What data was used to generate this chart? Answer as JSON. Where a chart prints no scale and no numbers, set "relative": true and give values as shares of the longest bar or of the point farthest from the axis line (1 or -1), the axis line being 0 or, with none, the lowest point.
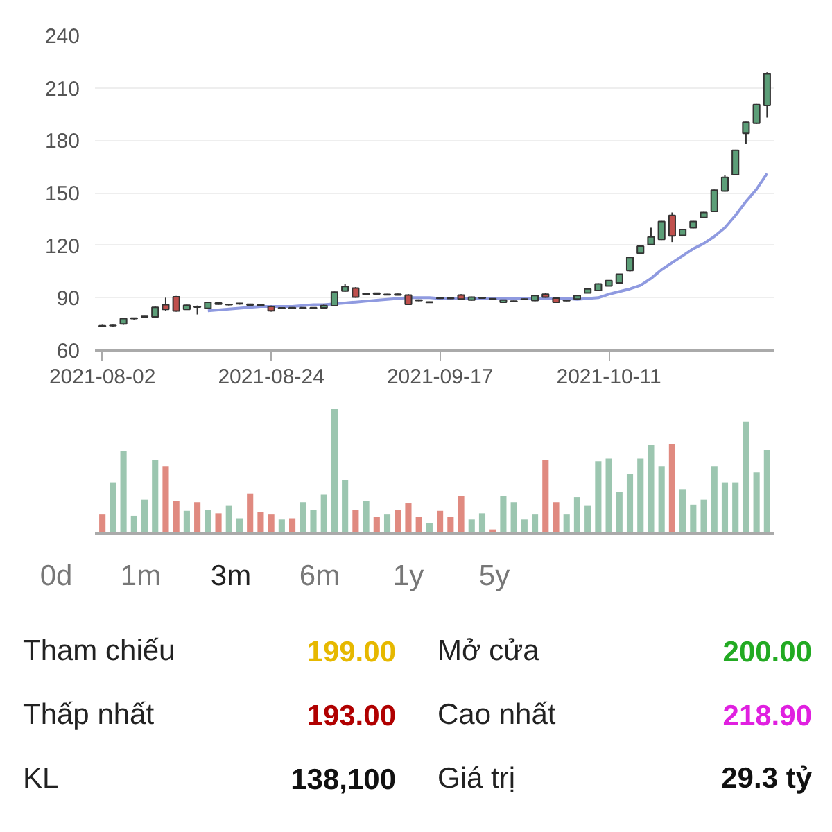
{
  "chart_data": [
    {
      "type": "candlestick",
      "categories": [
        "2021-08-02",
        null,
        null,
        null,
        null,
        null,
        null,
        null,
        null,
        null,
        null,
        null,
        null,
        null,
        null,
        null,
        "2021-08-24",
        null,
        null,
        null,
        null,
        null,
        null,
        null,
        null,
        null,
        null,
        null,
        null,
        null,
        null,
        null,
        "2021-09-17",
        null,
        null,
        null,
        null,
        null,
        null,
        null,
        null,
        null,
        null,
        null,
        null,
        null,
        null,
        null,
        "2021-10-11",
        null,
        null,
        null,
        null,
        null,
        null,
        null,
        null,
        null,
        null,
        null,
        null,
        null,
        null,
        null
      ],
      "ohlc": [
        [
          74,
          74.5,
          73.5,
          73.8
        ],
        [
          74,
          74.5,
          73.5,
          74.2
        ],
        [
          75,
          78.5,
          74.5,
          78
        ],
        [
          78,
          78.5,
          77.5,
          78.3
        ],
        [
          79,
          79.5,
          78.5,
          79.3
        ],
        [
          79,
          85,
          78.5,
          84.5
        ],
        [
          86,
          90,
          82.5,
          83.3
        ],
        [
          90.5,
          91,
          82,
          82.4
        ],
        [
          83.3,
          86,
          83,
          85.7
        ],
        [
          85,
          85.5,
          80.4,
          84.6
        ],
        [
          83.9,
          87.5,
          83.5,
          87.4
        ],
        [
          87,
          87.5,
          86,
          86.3
        ],
        [
          86,
          86.5,
          85.5,
          86.2
        ],
        [
          86.5,
          87,
          86,
          86.8
        ],
        [
          86.3,
          86.6,
          85.5,
          85.8
        ],
        [
          86,
          86.3,
          85.2,
          85.6
        ],
        [
          85,
          85.5,
          82,
          82.5
        ],
        [
          84,
          84.5,
          83.5,
          84.2
        ],
        [
          84.3,
          84.6,
          83.6,
          83.9
        ],
        [
          84,
          84.5,
          83.5,
          84.3
        ],
        [
          84,
          84.5,
          83.6,
          84.3
        ],
        [
          84.2,
          86,
          84,
          85.5
        ],
        [
          85.4,
          93.5,
          85,
          93.2
        ],
        [
          93.8,
          98,
          93.5,
          96.4
        ],
        [
          95.5,
          96,
          90,
          90.3
        ],
        [
          92,
          92.6,
          91.8,
          92.4
        ],
        [
          92.6,
          92.8,
          91.8,
          92.1
        ],
        [
          91.6,
          92.2,
          91.4,
          91.9
        ],
        [
          92,
          92.3,
          91.3,
          91.5
        ],
        [
          91.5,
          92,
          86,
          86.2
        ],
        [
          88.6,
          89,
          88,
          88.3
        ],
        [
          87.3,
          87.8,
          87,
          87.6
        ],
        [
          89.9,
          90.2,
          89.3,
          89.6
        ],
        [
          89.8,
          90.2,
          89.3,
          89.5
        ],
        [
          91.5,
          92,
          89,
          89.2
        ],
        [
          88.6,
          90.6,
          88.4,
          90.3
        ],
        [
          89.7,
          90.5,
          89.5,
          90
        ],
        [
          89.4,
          89.6,
          88.9,
          89.1
        ],
        [
          87.4,
          88.8,
          87.2,
          88.6
        ],
        [
          87.9,
          88.3,
          87.7,
          88.1
        ],
        [
          88.9,
          89.5,
          88.8,
          89.2
        ],
        [
          88.3,
          91.5,
          88,
          91.2
        ],
        [
          92,
          92.5,
          90,
          90.3
        ],
        [
          89.7,
          90,
          87.2,
          87.4
        ],
        [
          88.2,
          88.6,
          88,
          88.4
        ],
        [
          89.2,
          91.5,
          89,
          91.2
        ],
        [
          92.7,
          95.2,
          92.5,
          95
        ],
        [
          94.1,
          98.2,
          93.8,
          97.9
        ],
        [
          96.7,
          100,
          96.5,
          99.7
        ],
        [
          98.5,
          103.6,
          98.2,
          103.4
        ],
        [
          105.5,
          113.2,
          105,
          113
        ],
        [
          115.4,
          120,
          115,
          119.5
        ],
        [
          120.4,
          130,
          120,
          124.7
        ],
        [
          123.3,
          133.8,
          123,
          133.5
        ],
        [
          137,
          138.7,
          121.8,
          125.3
        ],
        [
          125.6,
          129.3,
          125.3,
          129
        ],
        [
          130,
          133.8,
          129.7,
          133.5
        ],
        [
          135.8,
          139,
          135.5,
          138.7
        ],
        [
          139.3,
          151.8,
          139,
          151.5
        ],
        [
          151,
          160.3,
          150.7,
          158.8
        ],
        [
          160.3,
          174.6,
          160,
          174.3
        ],
        [
          184,
          190.6,
          177.8,
          190.3
        ],
        [
          189.7,
          200.8,
          189.4,
          200.5
        ],
        [
          200,
          218.9,
          193,
          218
        ]
      ],
      "colors": [
        "#c0504d",
        "#5c9e78",
        "#5c9e78",
        "#5c9e78",
        "#5c9e78",
        "#5c9e78",
        "#c0504d",
        "#c0504d",
        "#5c9e78",
        "#c0504d",
        "#5c9e78",
        "#c0504d",
        "#5c9e78",
        "#5c9e78",
        "#c0504d",
        "#c0504d",
        "#c0504d",
        "#5c9e78",
        "#c0504d",
        "#5c9e78",
        "#5c9e78",
        "#5c9e78",
        "#5c9e78",
        "#5c9e78",
        "#c0504d",
        "#5c9e78",
        "#c0504d",
        "#5c9e78",
        "#c0504d",
        "#c0504d",
        "#c0504d",
        "#5c9e78",
        "#c0504d",
        "#c0504d",
        "#c0504d",
        "#5c9e78",
        "#5c9e78",
        "#c0504d",
        "#5c9e78",
        "#5c9e78",
        "#5c9e78",
        "#5c9e78",
        "#c0504d",
        "#c0504d",
        "#5c9e78",
        "#5c9e78",
        "#5c9e78",
        "#5c9e78",
        "#5c9e78",
        "#5c9e78",
        "#5c9e78",
        "#5c9e78",
        "#5c9e78",
        "#5c9e78",
        "#c0504d",
        "#5c9e78",
        "#5c9e78",
        "#5c9e78",
        "#5c9e78",
        "#5c9e78",
        "#5c9e78",
        "#5c9e78",
        "#5c9e78",
        "#5c9e78"
      ],
      "series": [
        {
          "type": "line",
          "color": "#8f9ae0",
          "values": [
            null,
            null,
            null,
            null,
            null,
            null,
            null,
            null,
            null,
            null,
            82.5,
            83,
            83.5,
            84,
            84.5,
            85,
            85,
            85,
            85,
            85.5,
            86,
            86,
            86.5,
            87,
            87.5,
            88,
            88.5,
            89,
            89.5,
            90,
            90,
            90,
            89.5,
            89.5,
            89.5,
            89.5,
            89.5,
            89.5,
            89.5,
            89.5,
            89.5,
            89.5,
            89.5,
            89.5,
            89.5,
            89,
            89.5,
            90,
            92,
            93.5,
            95,
            97,
            101,
            106,
            110,
            114,
            118,
            121,
            125,
            130,
            137,
            145,
            152,
            161
          ]
        }
      ],
      "ylim": [
        60,
        240
      ],
      "yticks": [
        60,
        90,
        120,
        150,
        180,
        210,
        240
      ],
      "grid": "y"
    },
    {
      "type": "bar",
      "relative": true,
      "categories": [
        null,
        null,
        null,
        null,
        null,
        null,
        null,
        null,
        null,
        null,
        null,
        null,
        null,
        null,
        null,
        null,
        null,
        null,
        null,
        null,
        null,
        null,
        null,
        null,
        null,
        null,
        null,
        null,
        null,
        null,
        null,
        null,
        null,
        null,
        null,
        null,
        null,
        null,
        null,
        null,
        null,
        null,
        null,
        null,
        null,
        null,
        null,
        null,
        null,
        null,
        null,
        null,
        null,
        null,
        null,
        null,
        null,
        null,
        null,
        null,
        null,
        null,
        null,
        null
      ],
      "values": [
        0.15,
        0.41,
        0.66,
        0.14,
        0.27,
        0.59,
        0.54,
        0.26,
        0.18,
        0.25,
        0.19,
        0.16,
        0.22,
        0.12,
        0.32,
        0.17,
        0.15,
        0.11,
        0.12,
        0.25,
        0.19,
        0.31,
        1,
        0.43,
        0.19,
        0.26,
        0.13,
        0.15,
        0.19,
        0.24,
        0.13,
        0.08,
        0.18,
        0.13,
        0.3,
        0.11,
        0.16,
        0.03,
        0.3,
        0.25,
        0.11,
        0.15,
        0.59,
        0.25,
        0.15,
        0.29,
        0.22,
        0.58,
        0.6,
        0.33,
        0.48,
        0.6,
        0.71,
        0.54,
        0.72,
        0.35,
        0.23,
        0.27,
        0.54,
        0.41,
        0.41,
        0.9,
        0.49,
        0.67
      ],
      "colors": [
        "#e08a80",
        "#9cc6b0",
        "#9cc6b0",
        "#9cc6b0",
        "#9cc6b0",
        "#9cc6b0",
        "#e08a80",
        "#e08a80",
        "#9cc6b0",
        "#e08a80",
        "#9cc6b0",
        "#e08a80",
        "#9cc6b0",
        "#9cc6b0",
        "#e08a80",
        "#e08a80",
        "#e08a80",
        "#9cc6b0",
        "#e08a80",
        "#9cc6b0",
        "#9cc6b0",
        "#9cc6b0",
        "#9cc6b0",
        "#9cc6b0",
        "#e08a80",
        "#9cc6b0",
        "#e08a80",
        "#9cc6b0",
        "#e08a80",
        "#e08a80",
        "#e08a80",
        "#9cc6b0",
        "#e08a80",
        "#e08a80",
        "#e08a80",
        "#9cc6b0",
        "#9cc6b0",
        "#e08a80",
        "#9cc6b0",
        "#9cc6b0",
        "#9cc6b0",
        "#9cc6b0",
        "#e08a80",
        "#e08a80",
        "#9cc6b0",
        "#9cc6b0",
        "#9cc6b0",
        "#9cc6b0",
        "#9cc6b0",
        "#9cc6b0",
        "#9cc6b0",
        "#9cc6b0",
        "#9cc6b0",
        "#9cc6b0",
        "#e08a80",
        "#9cc6b0",
        "#9cc6b0",
        "#9cc6b0",
        "#9cc6b0",
        "#9cc6b0",
        "#9cc6b0",
        "#9cc6b0",
        "#9cc6b0",
        "#9cc6b0"
      ]
    },
    {
      "type": "other",
      "annotations": [
        "0d",
        "1m",
        "3m",
        "6m",
        "1y",
        "5y",
        "Tham chiếu",
        "199.00",
        "Mở cửa",
        "200.00",
        "Thấp nhất",
        "193.00",
        "Cao nhất",
        "218.90",
        "KL",
        "138,100",
        "Giá trị",
        "29.3 tỷ"
      ],
      "colors": [
        "#777777",
        "#777777",
        "#222222",
        "#777777",
        "#777777",
        "#777777",
        "#222222",
        "#e6b800",
        "#222222",
        "#22aa22",
        "#222222",
        "#b00000",
        "#222222",
        "#e020e0",
        "#222222",
        "#111111",
        "#222222",
        "#111111"
      ]
    }
  ]
}
